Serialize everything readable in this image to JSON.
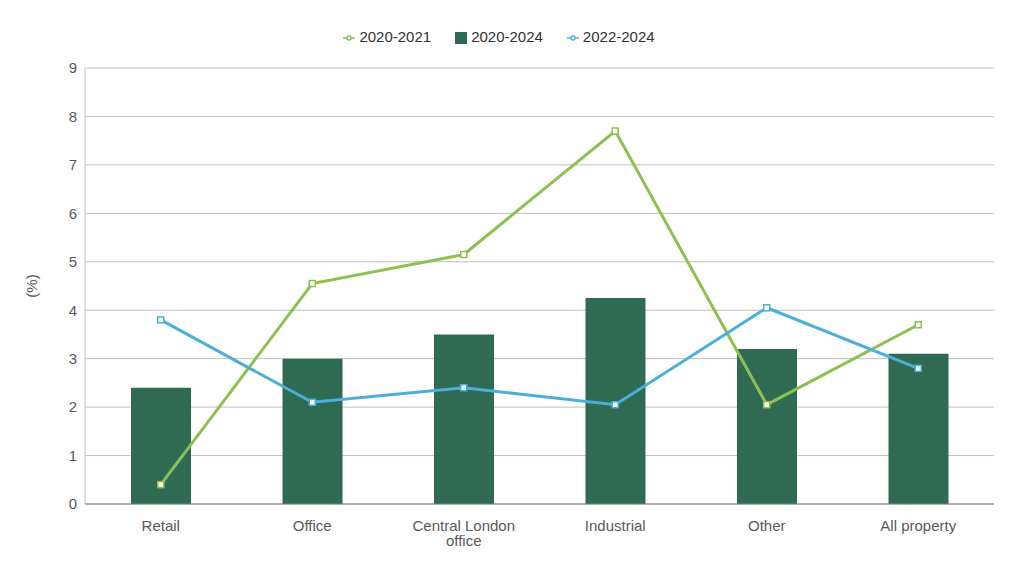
{
  "chart_data": {
    "type": "bar",
    "y_label": "(%)",
    "categories": [
      "Retail",
      "Office",
      "Central London office",
      "Industrial",
      "Other",
      "All property"
    ],
    "series": [
      {
        "name": "2020-2024",
        "type": "bar",
        "color": "#2e6b52",
        "values": [
          2.4,
          3.0,
          3.5,
          4.25,
          3.2,
          3.1
        ]
      },
      {
        "name": "2020-2021",
        "type": "line",
        "color": "#8cc152",
        "marker": "square",
        "values": [
          0.4,
          4.55,
          5.15,
          7.7,
          2.05,
          3.7
        ]
      },
      {
        "name": "2022-2024",
        "type": "line",
        "color": "#4bafd9",
        "marker": "square",
        "values": [
          3.8,
          2.1,
          2.4,
          2.05,
          4.05,
          2.8
        ]
      }
    ],
    "ylim": [
      0,
      9
    ],
    "yticks": [
      0,
      1,
      2,
      3,
      4,
      5,
      6,
      7,
      8,
      9
    ],
    "grid": true,
    "legend": "top"
  }
}
